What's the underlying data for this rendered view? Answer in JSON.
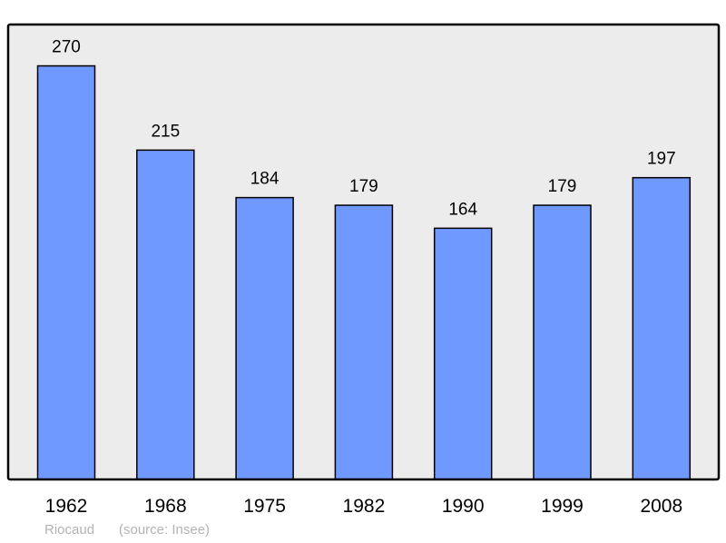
{
  "chart_data": {
    "type": "bar",
    "categories": [
      "1962",
      "1968",
      "1975",
      "1982",
      "1990",
      "1999",
      "2008"
    ],
    "values": [
      270,
      215,
      184,
      179,
      164,
      179,
      197
    ],
    "title": "",
    "xlabel": "",
    "ylabel": "",
    "ylim": [
      0,
      297
    ],
    "grid": false,
    "bar_color": "#7099ff",
    "background_color": "#ececec"
  },
  "caption": {
    "place": "Riocaud",
    "source": "(source: Insee)"
  }
}
